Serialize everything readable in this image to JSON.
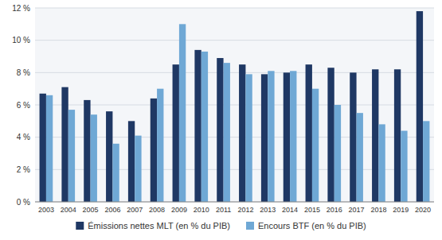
{
  "chart_data": {
    "type": "bar",
    "categories": [
      "2003",
      "2004",
      "2005",
      "2006",
      "2007",
      "2008",
      "2009",
      "2010",
      "2011",
      "2012",
      "2013",
      "2014",
      "2015",
      "2016",
      "2017",
      "2018",
      "2019",
      "2020"
    ],
    "series": [
      {
        "name": "Émissions nettes MLT (en % du PIB)",
        "color": "#1F3864",
        "values": [
          6.7,
          7.1,
          6.3,
          5.6,
          5.0,
          6.4,
          8.5,
          9.4,
          8.9,
          8.5,
          7.9,
          8.0,
          8.5,
          8.3,
          8.0,
          8.2,
          8.2,
          11.8
        ]
      },
      {
        "name": "Encours BTF (en % du PIB)",
        "color": "#6FA8D5",
        "values": [
          6.6,
          5.7,
          5.4,
          3.6,
          4.1,
          7.0,
          11.0,
          9.3,
          8.6,
          7.9,
          8.1,
          8.1,
          7.0,
          6.0,
          5.5,
          4.8,
          4.4,
          5.0
        ]
      }
    ],
    "ylim": [
      0,
      12
    ],
    "yticks": [
      {
        "value": 0,
        "label": "0 %"
      },
      {
        "value": 2,
        "label": "2 %"
      },
      {
        "value": 4,
        "label": "4 %"
      },
      {
        "value": 6,
        "label": "6 %"
      },
      {
        "value": 8,
        "label": "8 %"
      },
      {
        "value": 10,
        "label": "10 %"
      },
      {
        "value": 12,
        "label": "12 %"
      }
    ],
    "grid": true,
    "legend": "bottom"
  }
}
